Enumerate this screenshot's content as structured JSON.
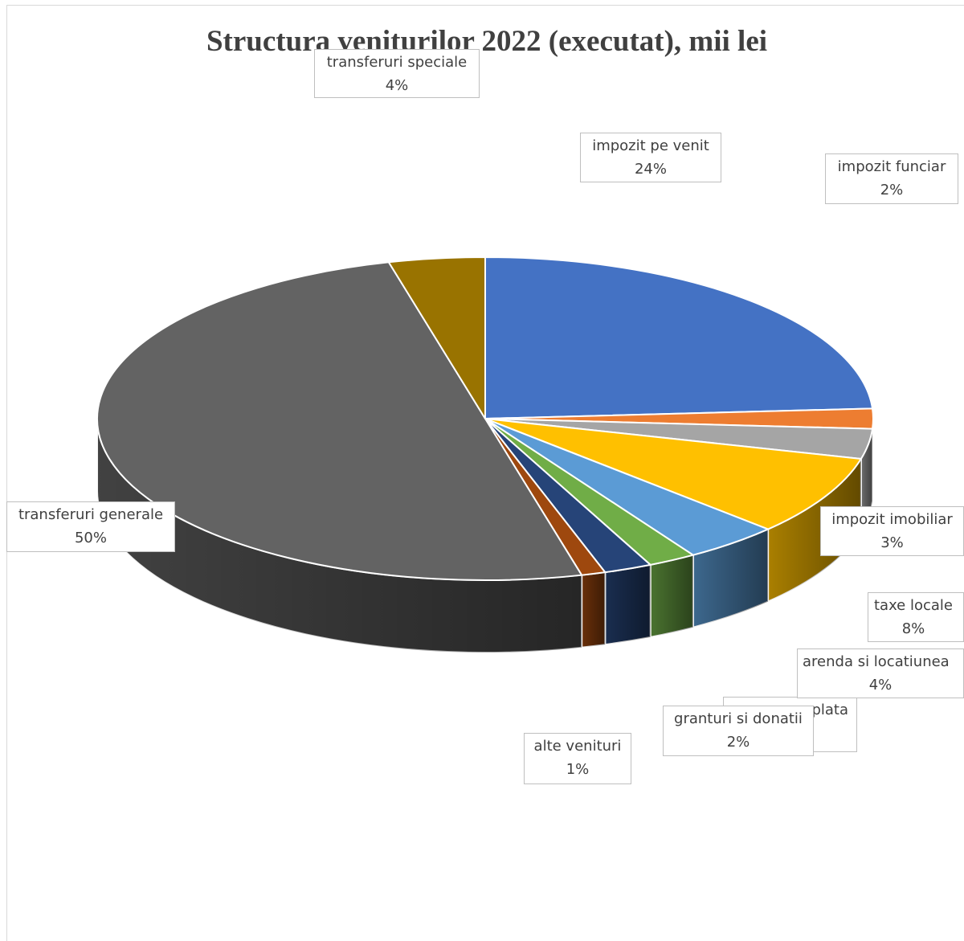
{
  "chart_data": {
    "type": "pie",
    "three_d": true,
    "title": "Structura veniturilor 2022 (executat), mii lei",
    "slices": [
      {
        "label": "impozit pe venit",
        "pct_label": "24%",
        "value": 24,
        "color": "#4472C4"
      },
      {
        "label": "impozit funciar",
        "pct_label": "2%",
        "value": 2,
        "color": "#ED7D31"
      },
      {
        "label": "impozit imobiliar",
        "pct_label": "3%",
        "value": 3,
        "color": "#A5A5A5"
      },
      {
        "label": "taxe locale",
        "pct_label": "8%",
        "value": 8,
        "color": "#FFC000"
      },
      {
        "label": "arenda si locatiunea",
        "pct_label": "4%",
        "value": 4,
        "color": "#5B9BD5"
      },
      {
        "label": "plata",
        "pct_label": "",
        "value": 2,
        "color": "#70AD47"
      },
      {
        "label": "granturi si donatii",
        "pct_label": "2%",
        "value": 2,
        "color": "#264478"
      },
      {
        "label": "alte venituri",
        "pct_label": "1%",
        "value": 1,
        "color": "#9E480E"
      },
      {
        "label": "transferuri generale",
        "pct_label": "50%",
        "value": 50,
        "color": "#636363"
      },
      {
        "label": "transferuri speciale",
        "pct_label": "4%",
        "value": 4,
        "color": "#997300"
      }
    ]
  }
}
